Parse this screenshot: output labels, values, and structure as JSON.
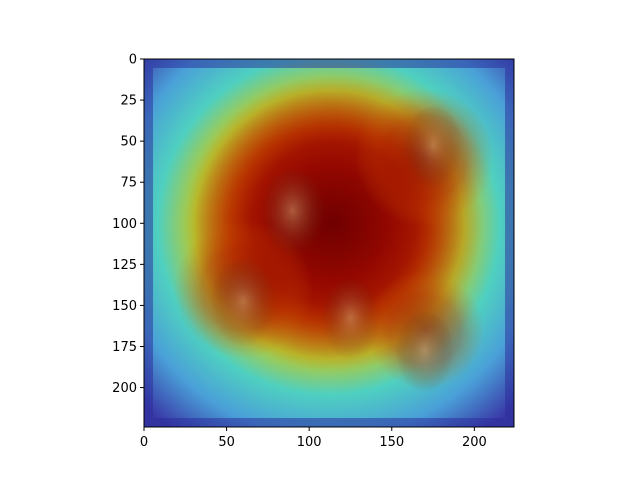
{
  "chart_data": {
    "type": "heatmap",
    "title": "",
    "xlabel": "",
    "ylabel": "",
    "xlim": [
      0,
      224
    ],
    "ylim": [
      224,
      0
    ],
    "xticks": [
      0,
      50,
      100,
      150,
      200
    ],
    "yticks": [
      0,
      25,
      50,
      75,
      100,
      125,
      150,
      175,
      200
    ],
    "grid": false,
    "colormap": "jet",
    "overlay_opacity": 0.55,
    "image_content": "Grad-CAM style activation heatmap overlaid on a sepia collage of several men's faces",
    "heat_centers": [
      {
        "x": 115,
        "y": 100,
        "intensity": 1.0,
        "spread": 75
      },
      {
        "x": 170,
        "y": 60,
        "intensity": 0.85,
        "spread": 35
      },
      {
        "x": 60,
        "y": 140,
        "intensity": 0.8,
        "spread": 35
      },
      {
        "x": 170,
        "y": 165,
        "intensity": 0.75,
        "spread": 30
      }
    ],
    "colors": {
      "low": "#00008f",
      "mid_low": "#00ffff",
      "mid": "#ffff00",
      "high": "#ff0000",
      "peak": "#7f0000",
      "axes": "#000000"
    }
  }
}
